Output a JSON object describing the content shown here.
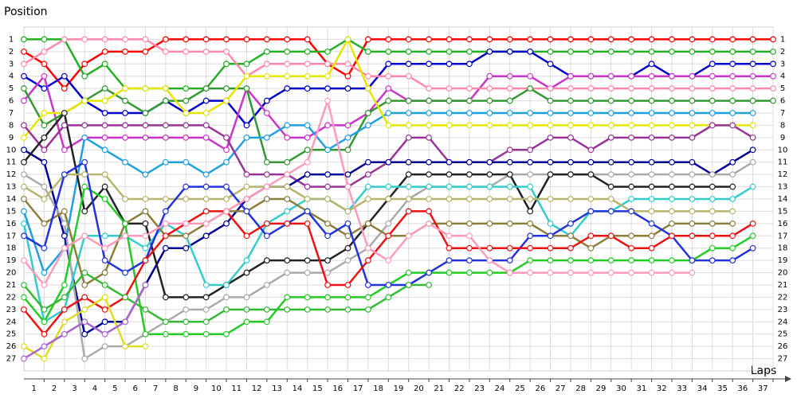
{
  "chart_data": {
    "type": "line",
    "y_label": "Position",
    "x_label": "Laps",
    "x": [
      0,
      1,
      2,
      3,
      4,
      5,
      6,
      7,
      8,
      9,
      10,
      11,
      12,
      13,
      14,
      15,
      16,
      17,
      18,
      19,
      20,
      21,
      22,
      23,
      24,
      25,
      26,
      27,
      28,
      29,
      30,
      31,
      32,
      33,
      34,
      35,
      36,
      37
    ],
    "xlim": [
      0,
      37
    ],
    "xticks": [
      1,
      2,
      3,
      4,
      5,
      6,
      7,
      8,
      9,
      10,
      11,
      12,
      13,
      14,
      15,
      16,
      17,
      18,
      19,
      20,
      21,
      22,
      23,
      24,
      25,
      26,
      27,
      28,
      29,
      30,
      31,
      32,
      33,
      34,
      35,
      36,
      37
    ],
    "ylim": [
      28,
      0
    ],
    "inverted": true,
    "grid": true,
    "yticks": [
      1,
      2,
      3,
      4,
      5,
      6,
      7,
      8,
      9,
      10,
      11,
      12,
      13,
      14,
      15,
      16,
      17,
      18,
      19,
      20,
      21,
      22,
      23,
      24,
      25,
      26,
      27
    ],
    "series": [
      {
        "color": "#ff0000",
        "values": [
          2,
          3,
          5,
          3,
          2,
          2,
          2,
          1,
          1,
          1,
          1,
          1,
          1,
          1,
          1,
          3,
          4,
          1,
          1,
          1,
          1,
          1,
          1,
          1,
          1,
          1,
          1,
          1,
          1,
          1,
          1,
          1,
          1,
          1,
          1,
          1,
          1,
          1
        ]
      },
      {
        "color": "#22b022",
        "values": [
          1,
          1,
          1,
          4,
          3,
          5,
          5,
          5,
          5,
          5,
          3,
          3,
          2,
          2,
          2,
          2,
          1,
          2,
          2,
          2,
          2,
          2,
          2,
          2,
          2,
          2,
          2,
          2,
          2,
          2,
          2,
          2,
          2,
          2,
          2,
          2,
          2,
          2
        ]
      },
      {
        "color": "#0000cc",
        "values": [
          4,
          5,
          4,
          6,
          7,
          7,
          7,
          6,
          7,
          6,
          6,
          8,
          6,
          5,
          5,
          5,
          5,
          5,
          3,
          3,
          3,
          3,
          3,
          2,
          2,
          2,
          3,
          4,
          4,
          4,
          4,
          3,
          4,
          4,
          3,
          3,
          3,
          3
        ]
      },
      {
        "color": "#cc33cc",
        "values": [
          6,
          4,
          10,
          9,
          9,
          9,
          9,
          9,
          9,
          9,
          10,
          5,
          7,
          9,
          9,
          8,
          8,
          7,
          5,
          6,
          6,
          6,
          6,
          4,
          4,
          4,
          5,
          4,
          4,
          4,
          4,
          4,
          4,
          4,
          4,
          4,
          4,
          4
        ]
      },
      {
        "color": "#ff88aa",
        "values": [
          3,
          2,
          1,
          1,
          1,
          1,
          1,
          2,
          2,
          2,
          2,
          4,
          3,
          3,
          3,
          3,
          3,
          4,
          4,
          4,
          5,
          5,
          5,
          5,
          5,
          5,
          5,
          5,
          5,
          5,
          5,
          5,
          5,
          5,
          5,
          5,
          5,
          5
        ]
      },
      {
        "color": "#339933",
        "values": [
          5,
          8,
          7,
          6,
          5,
          6,
          7,
          6,
          6,
          5,
          5,
          5,
          11,
          11,
          10,
          10,
          10,
          7,
          6,
          6,
          6,
          6,
          6,
          6,
          6,
          5,
          6,
          6,
          6,
          6,
          6,
          6,
          6,
          6,
          6,
          6,
          6,
          6
        ]
      },
      {
        "color": "#1fa0e0",
        "values": [
          15,
          20,
          18,
          9,
          10,
          11,
          12,
          11,
          11,
          12,
          11,
          9,
          9,
          8,
          8,
          10,
          9,
          8,
          7,
          7,
          7,
          7,
          7,
          7,
          7,
          7,
          7,
          7,
          7,
          7,
          7,
          7,
          7,
          7,
          7,
          7,
          7,
          null
        ]
      },
      {
        "color": "#e6e600",
        "values": [
          9,
          7,
          7,
          6,
          6,
          5,
          5,
          5,
          7,
          7,
          6,
          4,
          4,
          4,
          4,
          4,
          1,
          5,
          8,
          8,
          8,
          8,
          8,
          8,
          8,
          8,
          8,
          8,
          8,
          8,
          8,
          8,
          8,
          8,
          8,
          8,
          8,
          null
        ]
      },
      {
        "color": "#993399",
        "values": [
          8,
          10,
          8,
          8,
          8,
          8,
          8,
          8,
          8,
          8,
          9,
          12,
          12,
          12,
          13,
          13,
          13,
          12,
          11,
          9,
          9,
          11,
          11,
          11,
          10,
          10,
          9,
          9,
          10,
          9,
          9,
          9,
          9,
          9,
          8,
          8,
          9,
          null
        ]
      },
      {
        "color": "#000099",
        "values": [
          10,
          11,
          17,
          25,
          24,
          24,
          21,
          18,
          18,
          17,
          16,
          14,
          13,
          13,
          12,
          12,
          12,
          11,
          11,
          11,
          11,
          11,
          11,
          11,
          11,
          11,
          11,
          11,
          11,
          11,
          11,
          11,
          11,
          11,
          12,
          11,
          10,
          null
        ]
      },
      {
        "color": "#aaaaaa",
        "values": [
          12,
          13,
          16,
          27,
          26,
          26,
          25,
          24,
          23,
          23,
          22,
          22,
          21,
          20,
          20,
          20,
          19,
          18,
          16,
          14,
          13,
          13,
          13,
          13,
          12,
          12,
          12,
          12,
          12,
          12,
          12,
          12,
          12,
          12,
          12,
          12,
          11,
          null
        ]
      },
      {
        "color": "#222222",
        "values": [
          11,
          9,
          7,
          15,
          13,
          16,
          16,
          22,
          22,
          22,
          21,
          20,
          19,
          19,
          19,
          19,
          18,
          16,
          14,
          12,
          12,
          12,
          12,
          12,
          12,
          15,
          12,
          12,
          12,
          13,
          13,
          13,
          13,
          13,
          13,
          13,
          null,
          null
        ]
      },
      {
        "color": "#33cccc",
        "values": [
          16,
          24,
          23,
          17,
          17,
          17,
          18,
          16,
          17,
          21,
          21,
          19,
          16,
          15,
          14,
          14,
          15,
          13,
          13,
          13,
          13,
          13,
          13,
          13,
          13,
          13,
          16,
          17,
          15,
          15,
          14,
          14,
          14,
          14,
          14,
          14,
          13,
          null
        ]
      },
      {
        "color": "#b5b56b",
        "values": [
          13,
          14,
          12,
          12,
          12,
          14,
          14,
          14,
          14,
          14,
          14,
          13,
          13,
          13,
          14,
          14,
          15,
          14,
          14,
          14,
          14,
          14,
          14,
          14,
          14,
          14,
          14,
          14,
          14,
          14,
          15,
          15,
          15,
          15,
          15,
          15,
          null,
          null
        ]
      },
      {
        "color": "#8b7d3a",
        "values": [
          14,
          16,
          15,
          21,
          20,
          16,
          15,
          17,
          17,
          16,
          15,
          15,
          14,
          14,
          15,
          16,
          17,
          16,
          17,
          17,
          16,
          16,
          16,
          16,
          16,
          16,
          17,
          17,
          18,
          17,
          17,
          17,
          16,
          16,
          16,
          16,
          null,
          null
        ]
      },
      {
        "color": "#22cc22",
        "values": [
          22,
          24,
          21,
          13,
          14,
          16,
          25,
          25,
          25,
          25,
          25,
          24,
          24,
          22,
          22,
          22,
          22,
          22,
          21,
          20,
          20,
          20,
          20,
          20,
          20,
          19,
          19,
          19,
          19,
          19,
          19,
          19,
          19,
          19,
          18,
          18,
          17,
          null
        ]
      },
      {
        "color": "#2233dd",
        "values": [
          17,
          18,
          12,
          11,
          19,
          20,
          19,
          15,
          13,
          13,
          13,
          15,
          17,
          16,
          15,
          17,
          16,
          21,
          21,
          21,
          20,
          19,
          19,
          19,
          19,
          17,
          17,
          16,
          15,
          15,
          15,
          16,
          17,
          19,
          19,
          19,
          18,
          null
        ]
      },
      {
        "color": "#ee1111",
        "values": [
          23,
          25,
          23,
          22,
          23,
          22,
          19,
          17,
          16,
          15,
          15,
          17,
          16,
          16,
          16,
          21,
          21,
          19,
          17,
          15,
          15,
          18,
          18,
          18,
          18,
          18,
          18,
          18,
          17,
          17,
          18,
          18,
          17,
          17,
          17,
          17,
          16,
          null
        ]
      },
      {
        "color": "#ff99bb",
        "values": [
          19,
          21,
          18,
          17,
          18,
          17,
          17,
          16,
          16,
          16,
          15,
          14,
          13,
          12,
          11,
          6,
          13,
          18,
          19,
          17,
          16,
          17,
          17,
          19,
          20,
          20,
          20,
          20,
          20,
          20,
          20,
          20,
          20,
          20,
          null,
          null,
          null,
          null
        ]
      },
      {
        "color": "#33bb33",
        "values": [
          21,
          23,
          22,
          20,
          21,
          22,
          23,
          24,
          24,
          24,
          23,
          23,
          23,
          23,
          23,
          23,
          23,
          23,
          22,
          21,
          21,
          null,
          null,
          null,
          null,
          null,
          null,
          null,
          null,
          null,
          null,
          null,
          null,
          null,
          null,
          null,
          null,
          null
        ]
      },
      {
        "color": "#dddd22",
        "values": [
          26,
          27,
          24,
          23,
          22,
          26,
          26,
          null,
          null,
          null,
          null,
          null,
          null,
          null,
          null,
          null,
          null,
          null,
          null,
          null,
          null,
          null,
          null,
          null,
          null,
          null,
          null,
          null,
          null,
          null,
          null,
          null,
          null,
          null,
          null,
          null,
          null,
          null
        ]
      },
      {
        "color": "#aa66cc",
        "values": [
          27,
          26,
          25,
          24,
          25,
          24,
          21,
          null,
          null,
          null,
          null,
          null,
          null,
          null,
          null,
          null,
          null,
          null,
          null,
          null,
          null,
          null,
          null,
          null,
          null,
          null,
          null,
          null,
          null,
          null,
          null,
          null,
          null,
          null,
          null,
          null,
          null,
          null
        ]
      }
    ]
  }
}
